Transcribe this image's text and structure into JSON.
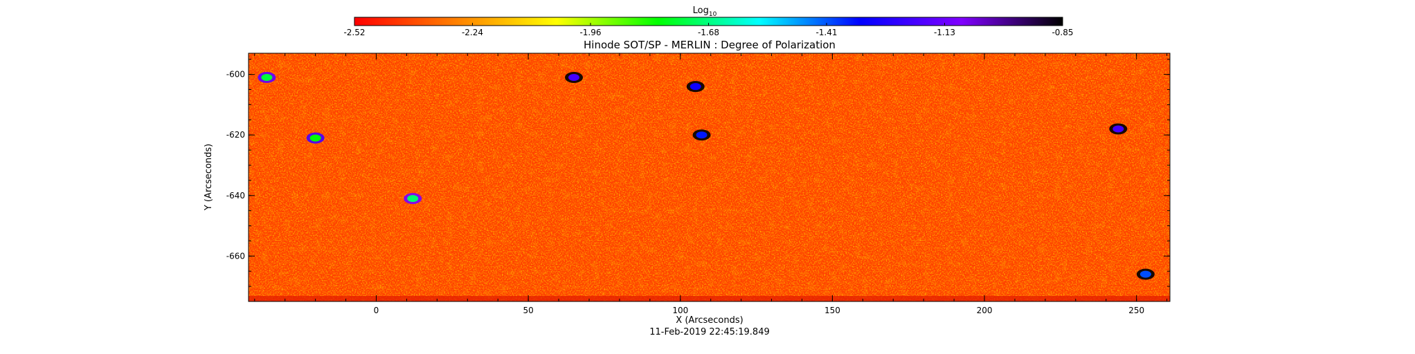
{
  "chart_data": {
    "type": "heatmap",
    "title": "Hinode SOT/SP - MERLIN : Degree of Polarization",
    "colorbar": {
      "label": "Log",
      "label_subscript": "10",
      "ticks": [
        "-2.52",
        "-2.24",
        "-1.96",
        "-1.68",
        "-1.41",
        "-1.13",
        "-0.85"
      ],
      "range": [
        -2.52,
        -0.85
      ],
      "colormap": [
        "#ff0000",
        "#ff8000",
        "#ffff00",
        "#00ff00",
        "#00ffff",
        "#0000ff",
        "#8000ff",
        "#000000"
      ]
    },
    "xlabel": "X (Arcseconds)",
    "ylabel": "Y (Arcseconds)",
    "xlim": [
      -42,
      261
    ],
    "ylim": [
      -675,
      -593
    ],
    "x_ticks": [
      "0",
      "50",
      "100",
      "150",
      "200",
      "250"
    ],
    "y_ticks": [
      "-600",
      "-620",
      "-640",
      "-660"
    ],
    "background_value": -2.4,
    "features": [
      {
        "x": 65,
        "y": -601,
        "value": -1.2
      },
      {
        "x": 105,
        "y": -604,
        "value": -1.3
      },
      {
        "x": 107,
        "y": -620,
        "value": -1.35
      },
      {
        "x": 244,
        "y": -618,
        "value": -1.2
      },
      {
        "x": 12,
        "y": -641,
        "value": -1.7
      },
      {
        "x": 253,
        "y": -666,
        "value": -1.4
      },
      {
        "x": -36,
        "y": -601,
        "value": -1.75
      },
      {
        "x": -20,
        "y": -621,
        "value": -1.8
      }
    ]
  },
  "footer": {
    "timestamp": "11-Feb-2019 22:45:19.849"
  }
}
